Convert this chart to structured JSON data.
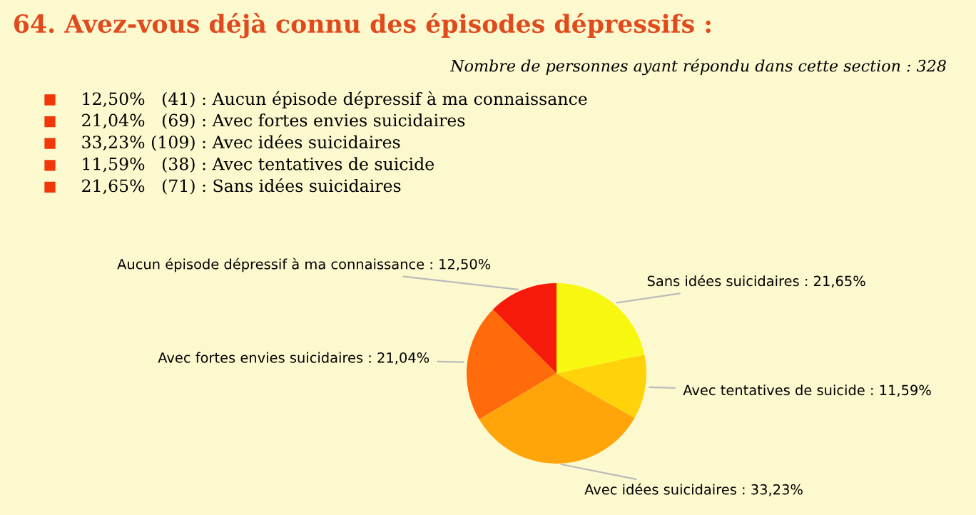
{
  "chart_data": {
    "type": "pie",
    "title": "64. Avez-vous déjà connu des épisodes dépressifs :",
    "subtitle": "Nombre de personnes ayant répondu dans cette section : 328",
    "annotations": [
      "12,50%   (41) : Aucun épisode dépressif à ma connaissance",
      "21,04%   (69) : Avec fortes envies suicidaires",
      "33,23% (109) : Avec idées suicidaires",
      "11,59%   (38) : Avec tentatives de suicide",
      "21,65%   (71) : Sans idées suicidaires"
    ],
    "categories": [
      "Aucun épisode dépressif à ma connaissance",
      "Avec fortes envies suicidaires",
      "Avec idées suicidaires",
      "Avec tentatives de suicide",
      "Sans idées suicidaires"
    ],
    "values": [
      12.5,
      21.04,
      33.23,
      11.59,
      21.65
    ],
    "value_labels": [
      "12,50%",
      "21,04%",
      "33,23%",
      "11,59%",
      "21,65%"
    ],
    "colors": [
      "#f51a0a",
      "#ff6a0a",
      "#ffa50a",
      "#ffd20a",
      "#f7f70f"
    ],
    "legend": false
  }
}
